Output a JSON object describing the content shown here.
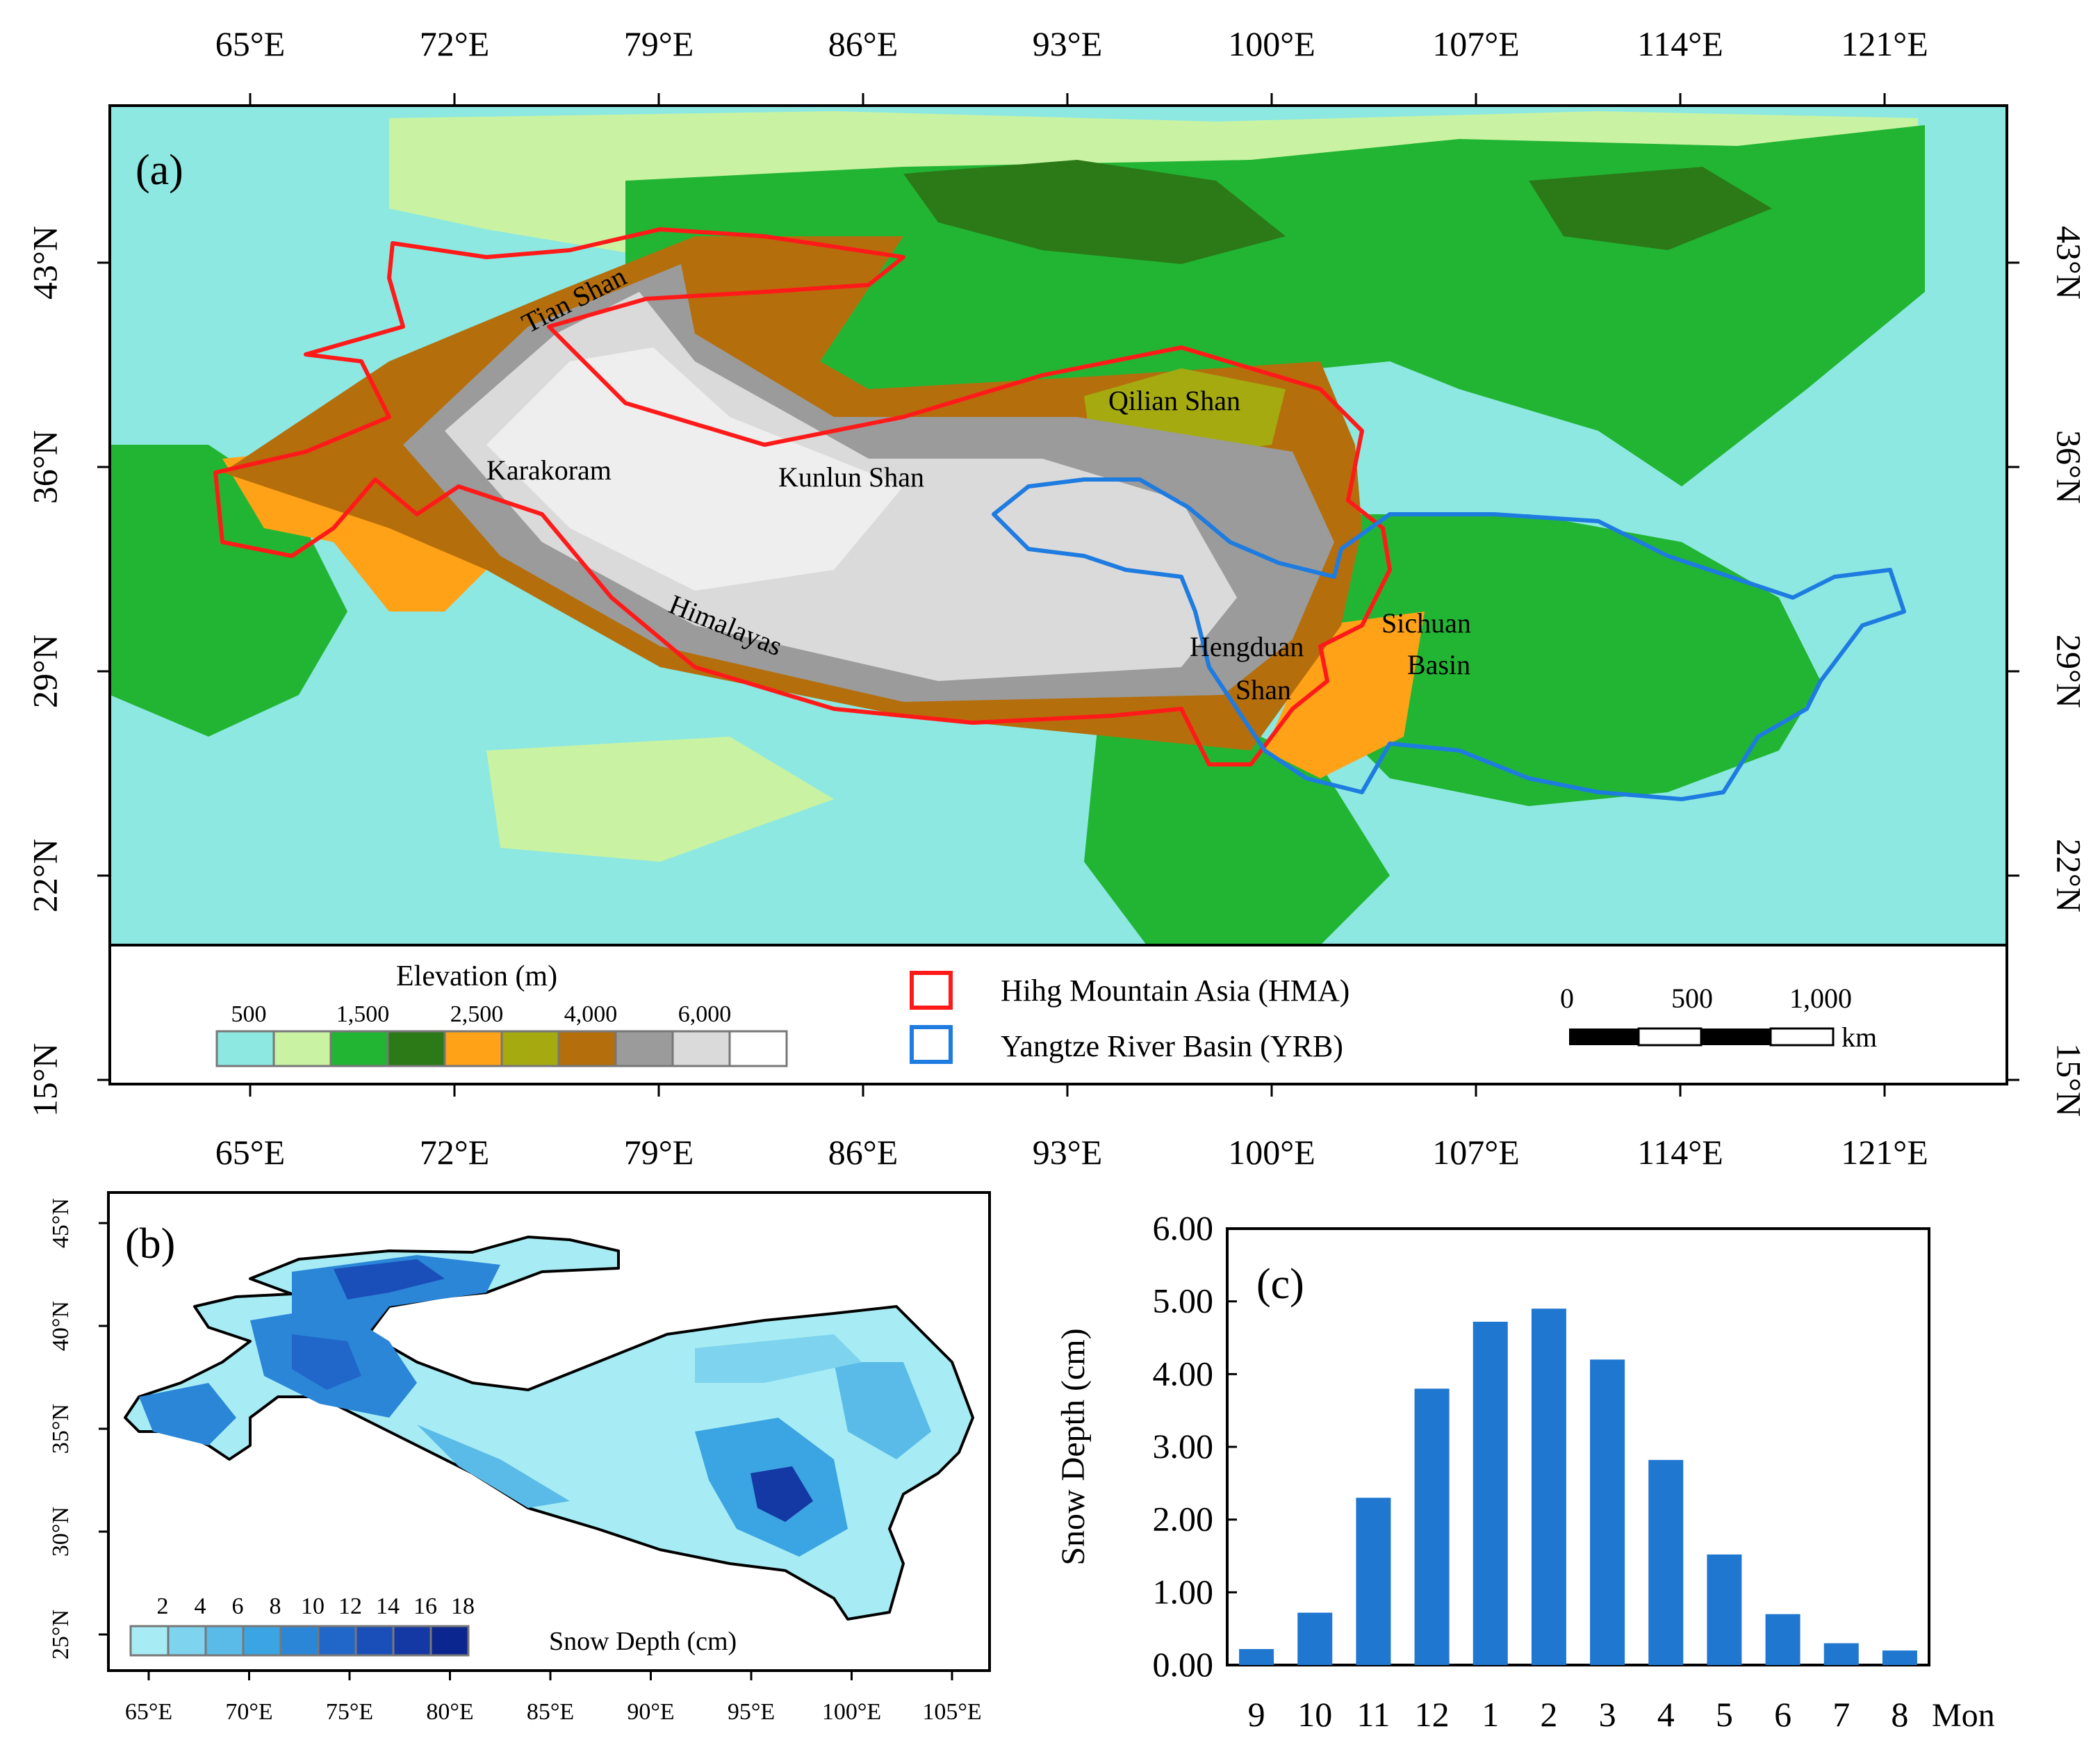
{
  "panel_a": {
    "label": "(a)",
    "lon_ticks": [
      "65°E",
      "72°E",
      "79°E",
      "86°E",
      "93°E",
      "100°E",
      "107°E",
      "114°E",
      "121°E"
    ],
    "lat_ticks": [
      "43°N",
      "36°N",
      "29°N",
      "22°N",
      "15°N"
    ],
    "regions": [
      "Tian Shan",
      "Qilian Shan",
      "Karakoram",
      "Kunlun Shan",
      "Himalayas",
      "Hengduan",
      "Shan",
      "Sichuan",
      "Basin"
    ],
    "legend": {
      "elevation_title": "Elevation (m)",
      "elevation_ticks": [
        "500",
        "1,500",
        "2,500",
        "4,000",
        "6,000"
      ],
      "elevation_colors": [
        "#8de8e2",
        "#c9f3a2",
        "#22b534",
        "#2b7a17",
        "#ffa218",
        "#a4aa10",
        "#b56e0c",
        "#9b9b9b",
        "#dadada",
        "#ffffff"
      ],
      "hma_label": "Hihg Mountain Asia (HMA)",
      "yrb_label": "Yangtze River Basin (YRB)",
      "hma_color": "#ff1a1a",
      "yrb_color": "#1e7be0",
      "scale_ticks": [
        "0",
        "500",
        "1,000"
      ],
      "scale_unit": "km"
    }
  },
  "panel_b": {
    "label": "(b)",
    "lon_ticks": [
      "65°E",
      "70°E",
      "75°E",
      "80°E",
      "85°E",
      "90°E",
      "95°E",
      "100°E",
      "105°E"
    ],
    "lat_ticks": [
      "45°N",
      "40°N",
      "35°N",
      "30°N",
      "25°N"
    ],
    "legend_ticks": [
      "2",
      "4",
      "6",
      "8",
      "10",
      "12",
      "14",
      "16",
      "18"
    ],
    "legend_title": "Snow Depth (cm)",
    "legend_colors": [
      "#a7ecf4",
      "#7ed3ee",
      "#5bbbe8",
      "#3ba4e2",
      "#2b86d8",
      "#2067c9",
      "#1a4fba",
      "#1438a4",
      "#0c2690"
    ]
  },
  "panel_c": {
    "label": "(c)",
    "ylabel": "Snow Depth (cm)",
    "month_unit": "Mon",
    "bar_color": "#1f77d0"
  },
  "chart_data": {
    "type": "bar",
    "categories": [
      "9",
      "10",
      "11",
      "12",
      "1",
      "2",
      "3",
      "4",
      "5",
      "6",
      "7",
      "8"
    ],
    "values": [
      0.22,
      0.72,
      2.3,
      3.8,
      4.72,
      4.9,
      4.2,
      2.82,
      1.52,
      0.7,
      0.3,
      0.2
    ],
    "ylabel": "Snow Depth (cm)",
    "xlabel": "",
    "ylim": [
      0,
      6
    ],
    "y_ticks": [
      "0.00",
      "1.00",
      "2.00",
      "3.00",
      "4.00",
      "5.00",
      "6.00"
    ],
    "grid": false
  }
}
